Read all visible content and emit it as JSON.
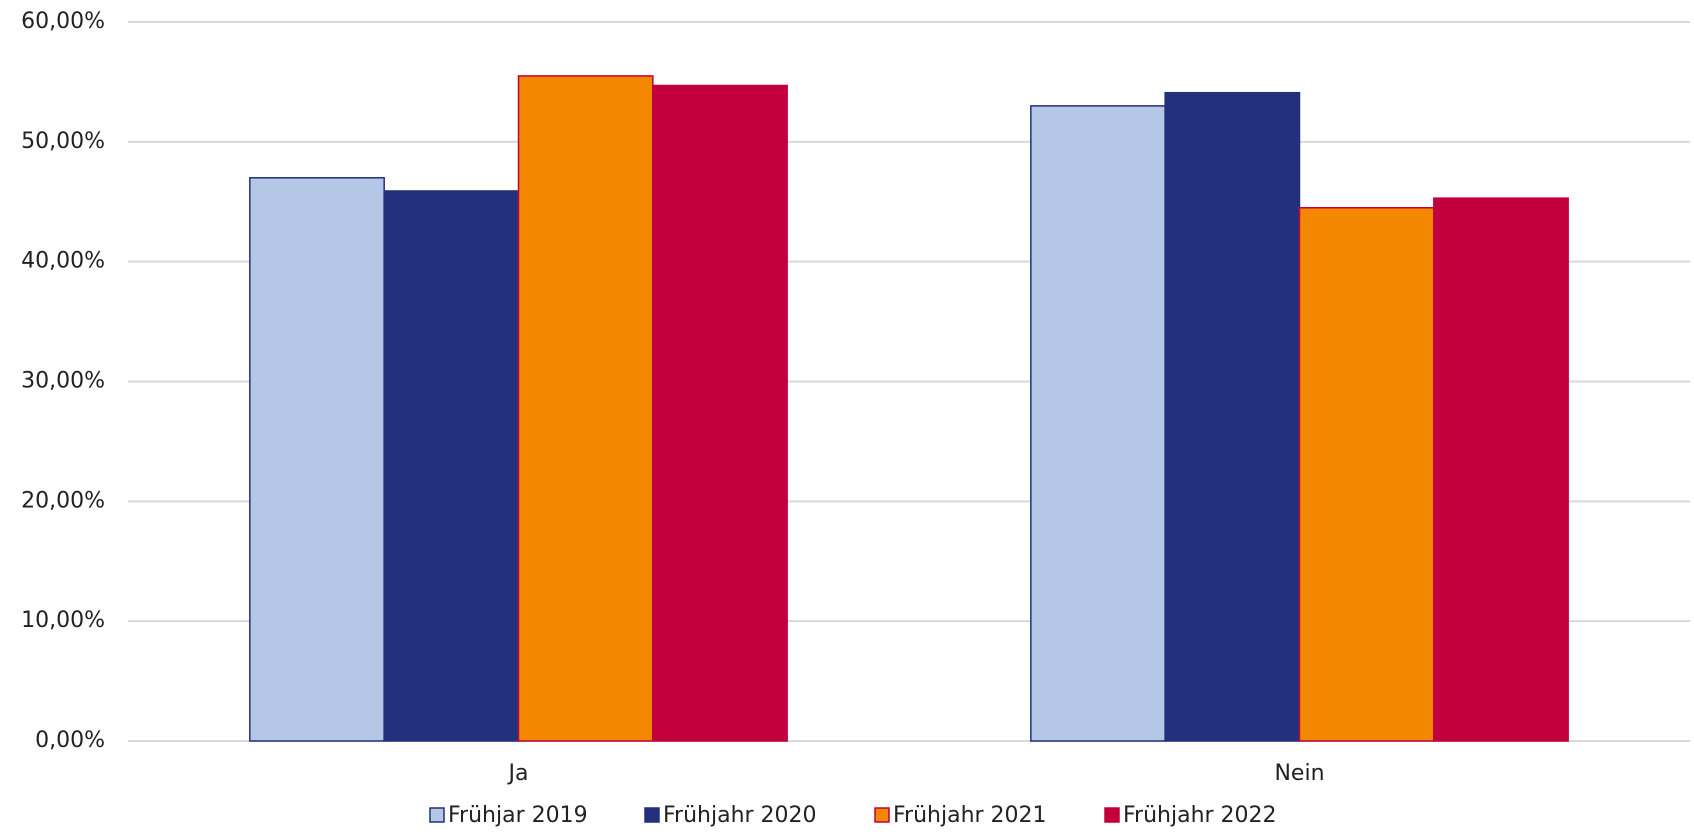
{
  "chart_data": {
    "type": "bar",
    "categories": [
      "Ja",
      "Nein"
    ],
    "series": [
      {
        "name": "Frühjar 2019",
        "color": "#b4c7e7",
        "edgecolor": "#23307b",
        "values": [
          47,
          53
        ]
      },
      {
        "name": "Frühjahr 2020",
        "color": "#23307b",
        "edgecolor": "#23307b",
        "values": [
          45.9,
          54.1
        ]
      },
      {
        "name": "Frühjahr 2021",
        "color": "#f38700",
        "edgecolor": "#c3003e",
        "values": [
          55.5,
          44.5
        ]
      },
      {
        "name": "Frühjahr 2022",
        "color": "#c3003e",
        "edgecolor": "#c3003e",
        "values": [
          54.7,
          45.3
        ]
      }
    ],
    "ylim": [
      0,
      60
    ],
    "yticks": [
      {
        "value": 0,
        "label": "0,00%"
      },
      {
        "value": 10,
        "label": "10,00%"
      },
      {
        "value": 20,
        "label": "20,00%"
      },
      {
        "value": 30,
        "label": "30,00%"
      },
      {
        "value": 40,
        "label": "40,00%"
      },
      {
        "value": 50,
        "label": "50,00%"
      },
      {
        "value": 60,
        "label": "60,00%"
      }
    ],
    "grid": true,
    "legend": "bottom"
  }
}
